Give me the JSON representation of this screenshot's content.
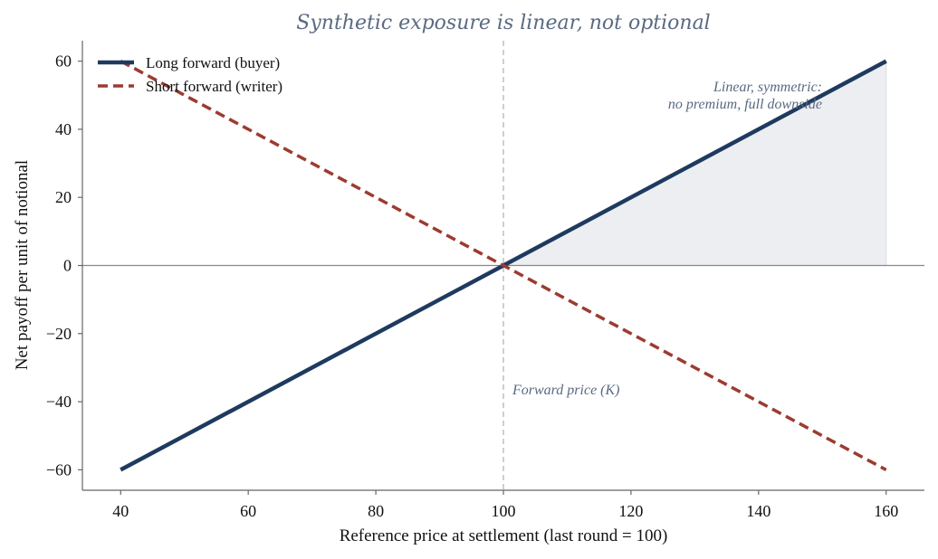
{
  "chart_data": {
    "type": "line",
    "title": "Synthetic exposure is linear, not optional",
    "xlabel": "Reference price at settlement (last round = 100)",
    "ylabel": "Net payoff per unit of notional",
    "xlim": [
      34,
      166
    ],
    "ylim": [
      -66,
      66
    ],
    "xticks": [
      40,
      60,
      80,
      100,
      120,
      140,
      160
    ],
    "yticks": [
      60,
      40,
      20,
      0,
      -20,
      -40,
      -60
    ],
    "grid": false,
    "legend_position": "top-left",
    "series": [
      {
        "name": "Long forward (buyer)",
        "color": "#1f3a5f",
        "style": "solid",
        "x": [
          40,
          160
        ],
        "y": [
          -60,
          60
        ]
      },
      {
        "name": "Short forward (writer)",
        "color": "#9c3b30",
        "style": "dashed",
        "x": [
          40,
          160
        ],
        "y": [
          60,
          -60
        ]
      }
    ],
    "shaded_region": {
      "x": [
        100,
        160
      ],
      "y_top": [
        0,
        60
      ],
      "color": "#eceef2"
    },
    "strike": {
      "x": 100,
      "label": "Forward price (K)"
    },
    "annotations": [
      {
        "lines": [
          "Linear, symmetric:",
          "no premium, full downside"
        ]
      }
    ]
  }
}
